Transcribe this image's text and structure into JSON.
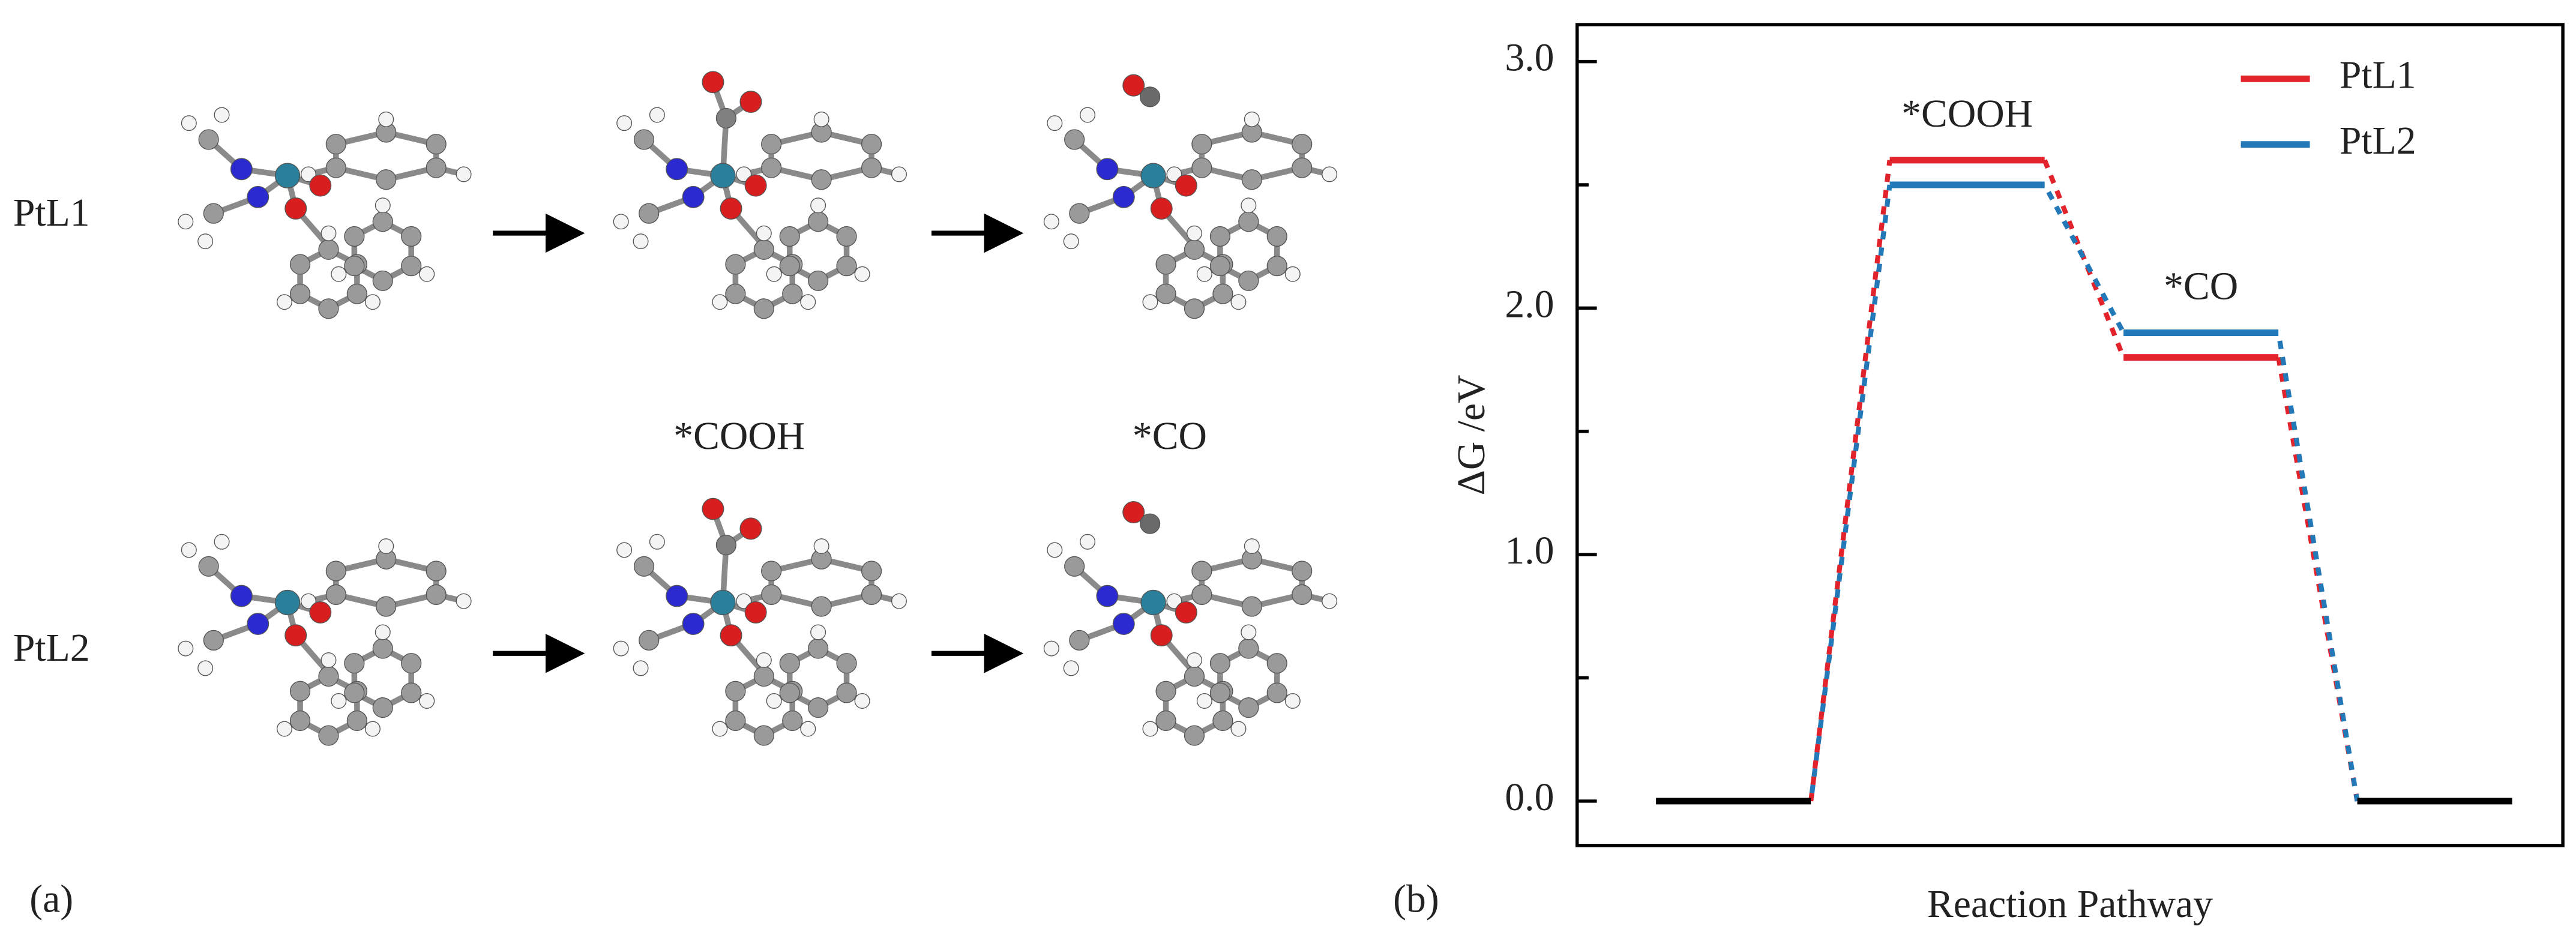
{
  "figure": {
    "panel_a": "(a)",
    "panel_b": "(b)",
    "rows": [
      "PtL1",
      "PtL2"
    ],
    "columns": [
      "*COOH",
      "*CO"
    ]
  },
  "chart_data": {
    "type": "energy",
    "xlabel": "Reaction Pathway",
    "ylabel": "ΔG /eV",
    "categories": [
      null,
      "*COOH",
      "*CO",
      null
    ],
    "series": [
      {
        "name": "PtL1",
        "color": "#e3232c",
        "values": [
          0,
          2.6,
          1.8,
          0
        ]
      },
      {
        "name": "PtL2",
        "color": "#2379b8",
        "values": [
          0,
          2.5,
          1.9,
          0
        ]
      }
    ],
    "shared_level_color": "#000000",
    "ylim": [
      -0.18,
      3.15
    ],
    "yticks": [
      {
        "value": 0,
        "label": "0.0"
      },
      {
        "value": 1,
        "label": "1.0"
      },
      {
        "value": 2,
        "label": "2.0"
      },
      {
        "value": 3,
        "label": "3.0"
      }
    ],
    "minor_yticks": [
      0.5,
      1.5,
      2.5
    ],
    "legend": "upper right"
  }
}
